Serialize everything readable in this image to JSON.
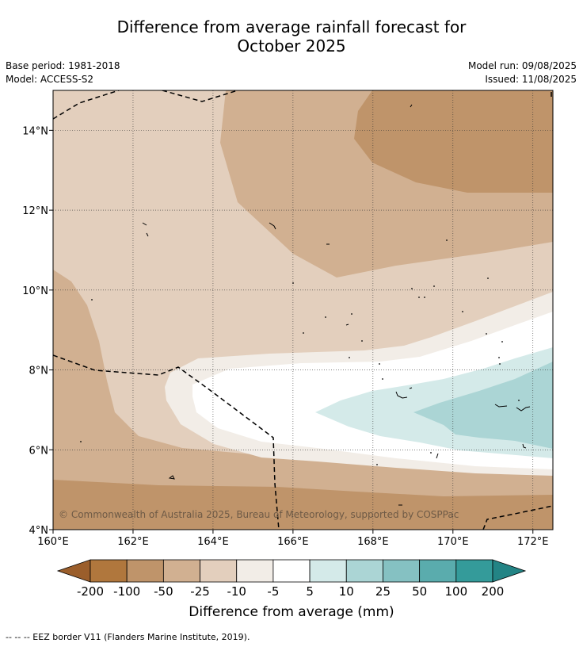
{
  "header": {
    "title_line1": "Difference from average rainfall forecast for",
    "title_line2": "October 2025",
    "base_period": "Base period: 1981-2018",
    "model": "Model: ACCESS-S2",
    "model_run": "Model run: 09/08/2025",
    "issued": "Issued: 11/08/2025"
  },
  "map": {
    "lon_range": [
      160,
      172.5
    ],
    "lat_range": [
      4,
      15
    ],
    "x_ticks": [
      "160°E",
      "162°E",
      "164°E",
      "166°E",
      "168°E",
      "170°E",
      "172°E"
    ],
    "x_tick_values": [
      160,
      162,
      164,
      166,
      168,
      170,
      172
    ],
    "y_ticks": [
      "4°N",
      "6°N",
      "8°N",
      "10°N",
      "12°N",
      "14°N"
    ],
    "y_tick_values": [
      4,
      6,
      8,
      10,
      12,
      14
    ],
    "copyright": "© Commonwealth of Australia 2025, Bureau of Meteorology, supported by COSPPac",
    "colors": {
      "lt_-50": "#bf946a",
      "-50_-25": "#d1b091",
      "-25_-10": "#e3cfbd",
      "-10_-5": "#f2ede7",
      "-5_5": "#ffffff",
      "5_10": "#d4eae9",
      "10_25": "#abd5d5"
    }
  },
  "colorbar": {
    "title": "Difference from average (mm)",
    "labels": [
      "-200",
      "-100",
      "-50",
      "-25",
      "-10",
      "-5",
      "5",
      "10",
      "25",
      "50",
      "100",
      "200"
    ],
    "colors": [
      "#9b5e2b",
      "#b0773d",
      "#bf946a",
      "#d1b091",
      "#e3cfbd",
      "#f2ede7",
      "#ffffff",
      "#d4eae9",
      "#abd5d5",
      "#85c1c2",
      "#5aacad",
      "#349b9a",
      "#238485"
    ]
  },
  "footer": {
    "eez_note": "--  --  -- EEZ border V11 (Flanders Marine Institute, 2019)."
  }
}
